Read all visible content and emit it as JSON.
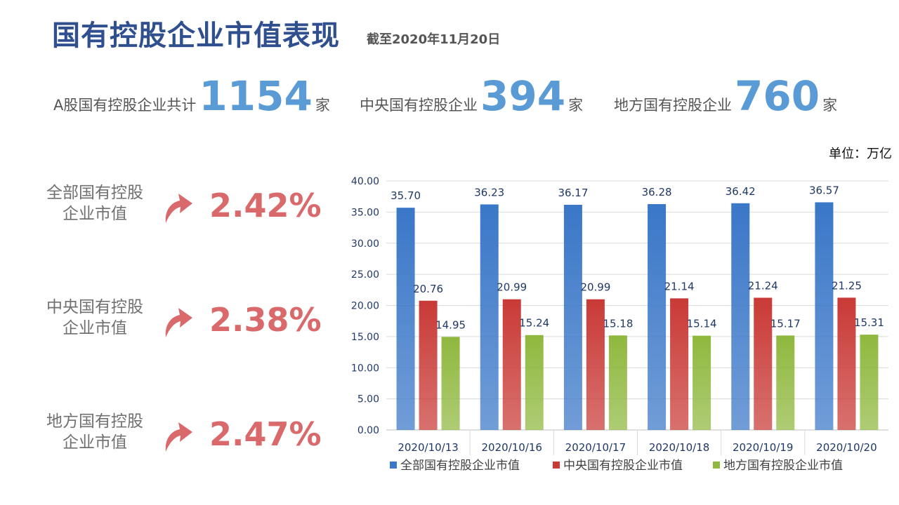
{
  "header": {
    "title": "国有控股企业市值表现",
    "subtitle": "截至2020年11月20日"
  },
  "stats": [
    {
      "label": "A股国有控股企业共计",
      "value": "1154",
      "unit": "家"
    },
    {
      "label": "中央国有控股企业",
      "value": "394",
      "unit": "家"
    },
    {
      "label": "地方国有控股企业",
      "value": "760",
      "unit": "家"
    }
  ],
  "unit_note": "单位：万亿",
  "metrics": [
    {
      "label_line1": "全部国有控股",
      "label_line2": "企业市值",
      "change": "2.42%"
    },
    {
      "label_line1": "中央国有控股",
      "label_line2": "企业市值",
      "change": "2.38%"
    },
    {
      "label_line1": "地方国有控股",
      "label_line2": "企业市值",
      "change": "2.47%"
    }
  ],
  "colors": {
    "title": "#2f4f8f",
    "stat_number": "#5b9bd5",
    "change": "#d9696b",
    "arrow": "#d9696b"
  },
  "chart_data": {
    "type": "bar",
    "title": "",
    "xlabel": "",
    "ylabel": "",
    "categories": [
      "2020/10/13",
      "2020/10/16",
      "2020/10/17",
      "2020/10/18",
      "2020/10/19",
      "2020/10/20"
    ],
    "series": [
      {
        "name": "全部国有控股企业市值",
        "color": "#3a77c8",
        "values": [
          35.7,
          36.23,
          36.17,
          36.28,
          36.42,
          36.57
        ]
      },
      {
        "name": "中央国有控股企业市值",
        "color": "#c93a36",
        "values": [
          20.76,
          20.99,
          20.99,
          21.14,
          21.24,
          21.25
        ]
      },
      {
        "name": "地方国有控股企业市值",
        "color": "#8fb83e",
        "values": [
          14.95,
          15.24,
          15.18,
          15.14,
          15.17,
          15.31
        ]
      }
    ],
    "ylim": [
      0,
      40
    ],
    "yticks": [
      "0.00",
      "5.00",
      "10.00",
      "15.00",
      "20.00",
      "25.00",
      "30.00",
      "35.00",
      "40.00"
    ],
    "grid": true,
    "legend": "bottom"
  }
}
